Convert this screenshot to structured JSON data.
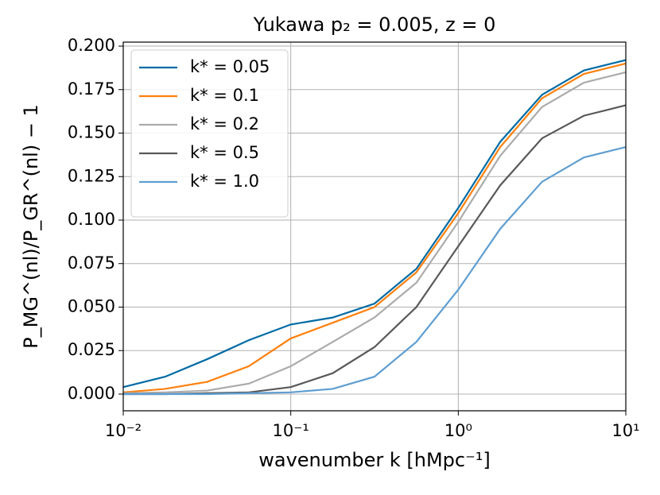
{
  "chart_data": {
    "type": "line",
    "title": "Yukawa p₂ = 0.005, z = 0",
    "xlabel": "wavenumber k [hMpc⁻¹]",
    "ylabel": "P_MG^(nl)/P_GR^(nl) − 1",
    "x": [
      0.01,
      0.0178,
      0.0316,
      0.0562,
      0.1,
      0.178,
      0.316,
      0.562,
      1,
      1.78,
      3.16,
      5.62,
      10
    ],
    "series": [
      {
        "name": "k* = 0.05",
        "color": "#006ba4",
        "values": [
          0.004,
          0.01,
          0.02,
          0.031,
          0.04,
          0.044,
          0.052,
          0.072,
          0.107,
          0.145,
          0.172,
          0.186,
          0.192
        ]
      },
      {
        "name": "k* = 0.1",
        "color": "#ff800e",
        "values": [
          0.001,
          0.003,
          0.007,
          0.016,
          0.032,
          0.041,
          0.05,
          0.07,
          0.104,
          0.142,
          0.17,
          0.184,
          0.19
        ]
      },
      {
        "name": "k* = 0.2",
        "color": "#ababab",
        "values": [
          0.0005,
          0.001,
          0.002,
          0.006,
          0.016,
          0.03,
          0.044,
          0.064,
          0.099,
          0.137,
          0.165,
          0.179,
          0.185
        ]
      },
      {
        "name": "k* = 0.5",
        "color": "#595959",
        "values": [
          0,
          0,
          0.0005,
          0.001,
          0.004,
          0.012,
          0.027,
          0.05,
          0.085,
          0.12,
          0.147,
          0.16,
          0.166
        ]
      },
      {
        "name": "k* = 1.0",
        "color": "#5f9ed1",
        "values": [
          0,
          0,
          0,
          0.0005,
          0.001,
          0.003,
          0.01,
          0.03,
          0.06,
          0.095,
          0.122,
          0.136,
          0.142
        ]
      }
    ],
    "xscale": "log",
    "xlim": [
      0.01,
      10
    ],
    "xticks": [
      {
        "value": 0.01,
        "label": "10⁻²"
      },
      {
        "value": 0.1,
        "label": "10⁻¹"
      },
      {
        "value": 1,
        "label": "10⁰"
      },
      {
        "value": 10,
        "label": "10¹"
      }
    ],
    "ylim": [
      -0.0096,
      0.2023
    ],
    "yticks": [
      {
        "value": 0,
        "label": "0.000"
      },
      0.025,
      {
        "value": 0.05,
        "label": "0.050"
      },
      0.075,
      {
        "value": 0.1,
        "label": "0.100"
      },
      0.125,
      {
        "value": 0.15,
        "label": "0.150"
      },
      0.175,
      {
        "value": 0.2,
        "label": "0.200"
      }
    ],
    "grid": true,
    "legend": "upper left"
  }
}
